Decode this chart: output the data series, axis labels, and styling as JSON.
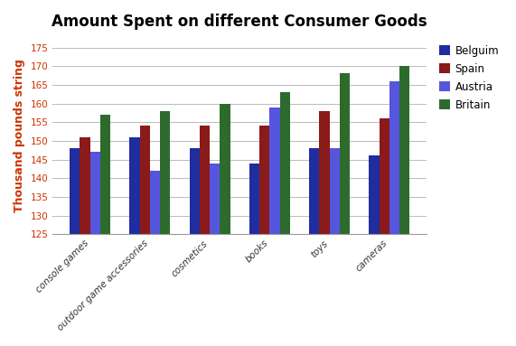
{
  "title": "Amount Spent on different Consumer Goods",
  "ylabel": "Thousand pounds string",
  "categories": [
    "console games",
    "outdoor game accessories",
    "cosmetics",
    "books",
    "toys",
    "cameras"
  ],
  "series": {
    "Belguim": [
      148,
      151,
      148,
      144,
      148,
      146
    ],
    "Spain": [
      151,
      154,
      154,
      154,
      158,
      156
    ],
    "Austria": [
      147,
      142,
      144,
      159,
      148,
      166
    ],
    "Britain": [
      157,
      158,
      160,
      163,
      168,
      170
    ]
  },
  "colors": {
    "Belguim": "#1F2D9E",
    "Spain": "#8B1A1A",
    "Austria": "#5555DD",
    "Britain": "#2D6B2D"
  },
  "ylim": [
    125,
    178
  ],
  "ymin": 125,
  "yticks": [
    125,
    130,
    135,
    140,
    145,
    150,
    155,
    160,
    165,
    170,
    175
  ],
  "legend_order": [
    "Belguim",
    "Spain",
    "Austria",
    "Britain"
  ],
  "background_color": "#ffffff",
  "grid_color": "#bbbbbb",
  "title_fontsize": 12,
  "label_fontsize": 9,
  "bar_width": 0.17,
  "figsize": [
    5.71,
    3.83
  ],
  "dpi": 100
}
